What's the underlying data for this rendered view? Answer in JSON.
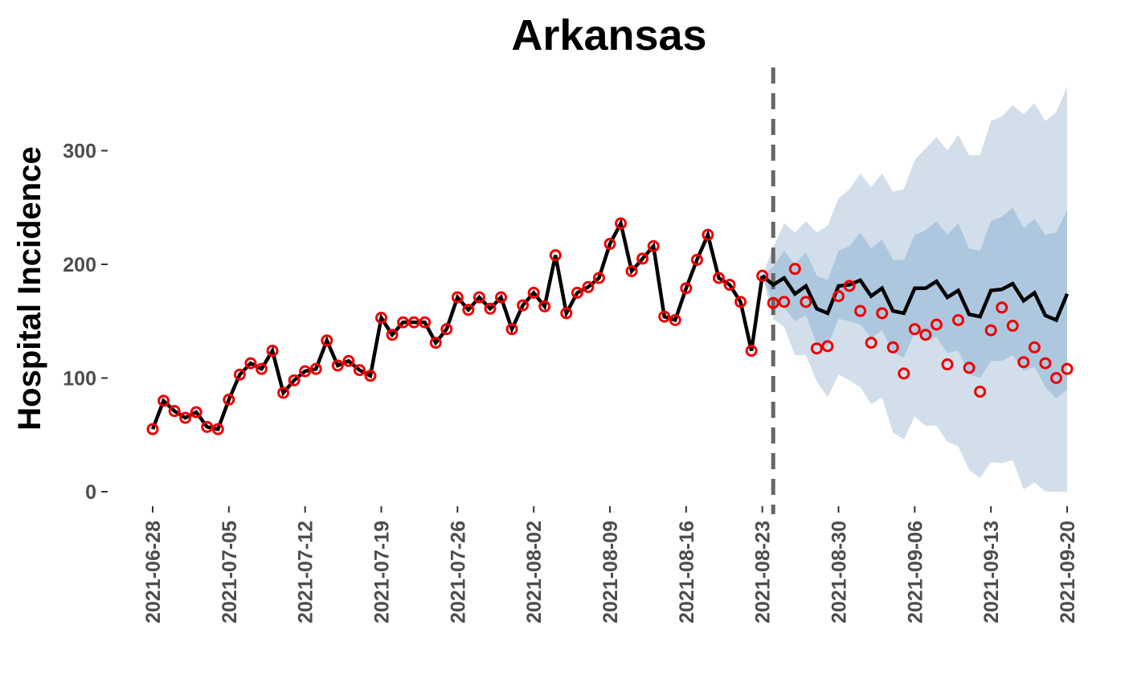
{
  "chart_data": {
    "type": "line",
    "title": "Arkansas",
    "ylabel": "Hospital Incidence",
    "xlabel": "",
    "ylim": [
      0,
      355
    ],
    "xlim": [
      "2021-06-28",
      "2021-09-20"
    ],
    "grid": false,
    "legend": "none",
    "y_ticks": [
      0,
      100,
      200,
      300
    ],
    "x_ticks": [
      "2021-06-28",
      "2021-07-05",
      "2021-07-12",
      "2021-07-19",
      "2021-07-26",
      "2021-08-02",
      "2021-08-09",
      "2021-08-16",
      "2021-08-23",
      "2021-08-30",
      "2021-09-06",
      "2021-09-13",
      "2021-09-20"
    ],
    "forecast_start": "2021-08-24",
    "colors": {
      "observed_points": "#ee0000",
      "fit_line": "#000000",
      "band_outer": "#d2dfeb",
      "band_inner": "#adc8de",
      "forecast_divider": "#666666"
    },
    "observed": {
      "start": "2021-06-28",
      "values": [
        55,
        80,
        71,
        65,
        70,
        57,
        55,
        81,
        103,
        113,
        108,
        124,
        87,
        98,
        106,
        108,
        133,
        111,
        115,
        107,
        102,
        153,
        138,
        149,
        149,
        149,
        131,
        143,
        171,
        160,
        171,
        161,
        171,
        143,
        164,
        175,
        163,
        208,
        157,
        175,
        180,
        188,
        218,
        236,
        194,
        205,
        216,
        154,
        151,
        179,
        204,
        226,
        188,
        182,
        167,
        124,
        190,
        166,
        167,
        196,
        167,
        126,
        128,
        172,
        181,
        159,
        131,
        157,
        127,
        104,
        143,
        138,
        147,
        112,
        151,
        109,
        88,
        142,
        162,
        146,
        114,
        127,
        113,
        100,
        108
      ]
    },
    "fitted": {
      "start": "2021-06-28",
      "values": [
        55,
        80,
        71,
        65,
        70,
        57,
        55,
        81,
        103,
        113,
        108,
        124,
        87,
        98,
        106,
        108,
        133,
        111,
        115,
        107,
        102,
        153,
        138,
        149,
        149,
        149,
        131,
        143,
        171,
        160,
        171,
        161,
        171,
        143,
        164,
        175,
        163,
        208,
        157,
        175,
        180,
        188,
        218,
        236,
        194,
        205,
        216,
        154,
        151,
        179,
        204,
        226,
        188,
        182,
        167,
        124,
        190
      ]
    },
    "forecast": {
      "start": "2021-08-23",
      "median": [
        190,
        182,
        188,
        174,
        181,
        161,
        157,
        181,
        182,
        186,
        172,
        179,
        159,
        157,
        179,
        179,
        185,
        171,
        177,
        156,
        154,
        177,
        178,
        183,
        168,
        175,
        155,
        151,
        174
      ],
      "inner_lower": [
        190,
        165,
        162,
        150,
        155,
        130,
        128,
        152,
        150,
        147,
        135,
        142,
        122,
        118,
        140,
        134,
        136,
        122,
        124,
        103,
        100,
        115,
        115,
        120,
        106,
        110,
        92,
        82,
        90
      ],
      "inner_upper": [
        190,
        198,
        212,
        200,
        211,
        190,
        186,
        212,
        216,
        228,
        214,
        222,
        204,
        204,
        226,
        230,
        238,
        226,
        236,
        214,
        212,
        238,
        242,
        250,
        232,
        240,
        226,
        228,
        248
      ],
      "outer_lower": [
        190,
        152,
        145,
        120,
        120,
        97,
        83,
        103,
        98,
        92,
        77,
        83,
        52,
        46,
        66,
        58,
        58,
        44,
        40,
        19,
        12,
        26,
        25,
        28,
        2,
        8,
        0,
        0,
        0
      ],
      "outer_upper": [
        190,
        215,
        236,
        228,
        238,
        228,
        234,
        258,
        266,
        280,
        268,
        280,
        264,
        266,
        292,
        302,
        312,
        300,
        314,
        296,
        296,
        326,
        330,
        340,
        332,
        342,
        326,
        334,
        356
      ]
    }
  }
}
